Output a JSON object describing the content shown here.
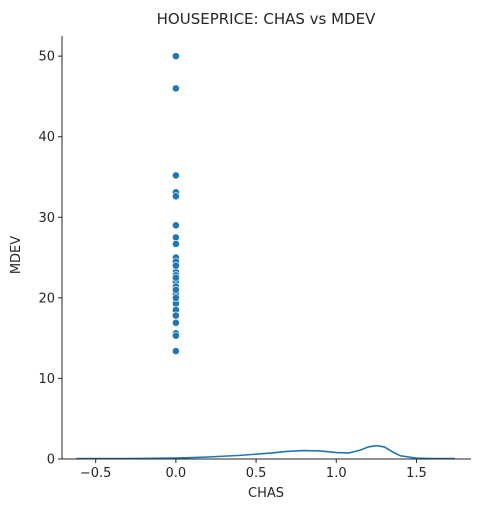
{
  "chart_data": {
    "type": "scatter",
    "title": "HOUSEPRICE: CHAS vs MDEV",
    "xlabel": "CHAS",
    "ylabel": "MDEV",
    "xlim": [
      -0.71,
      1.84
    ],
    "ylim": [
      0,
      52.5
    ],
    "x_ticks": [
      -0.5,
      0.0,
      0.5,
      1.0,
      1.5
    ],
    "x_tick_labels": [
      "−0.5",
      "0.0",
      "0.5",
      "1.0",
      "1.5"
    ],
    "y_ticks": [
      0,
      10,
      20,
      30,
      40,
      50
    ],
    "y_tick_labels": [
      "0",
      "10",
      "20",
      "30",
      "40",
      "50"
    ],
    "grid": false,
    "colors": {
      "points": "#1f77b4",
      "line": "#1f77b4",
      "axis": "#262626"
    },
    "scatter_series": {
      "x": [
        0,
        0,
        0,
        0,
        0,
        0,
        0,
        0,
        0,
        0,
        0,
        0,
        0,
        0,
        0,
        0,
        0,
        0,
        0,
        0,
        0,
        0,
        0,
        0,
        0,
        0,
        0
      ],
      "y": [
        50.0,
        46.0,
        35.2,
        33.1,
        32.6,
        29.0,
        27.5,
        26.7,
        25.0,
        24.5,
        23.2,
        22.8,
        22.0,
        21.4,
        20.5,
        19.9,
        19.3,
        18.5,
        17.8,
        16.9,
        15.6,
        15.3,
        13.4,
        22.5,
        24.0,
        21.0,
        20.0
      ]
    },
    "line_series": {
      "x": [
        -0.62,
        -0.4,
        -0.2,
        0.0,
        0.2,
        0.4,
        0.6,
        0.7,
        0.8,
        0.9,
        1.0,
        1.08,
        1.15,
        1.2,
        1.25,
        1.3,
        1.35,
        1.4,
        1.5,
        1.6,
        1.74
      ],
      "y": [
        0.05,
        0.05,
        0.07,
        0.12,
        0.25,
        0.45,
        0.75,
        0.95,
        1.05,
        1.0,
        0.8,
        0.75,
        1.1,
        1.5,
        1.65,
        1.5,
        0.9,
        0.4,
        0.1,
        0.06,
        0.05
      ]
    }
  }
}
